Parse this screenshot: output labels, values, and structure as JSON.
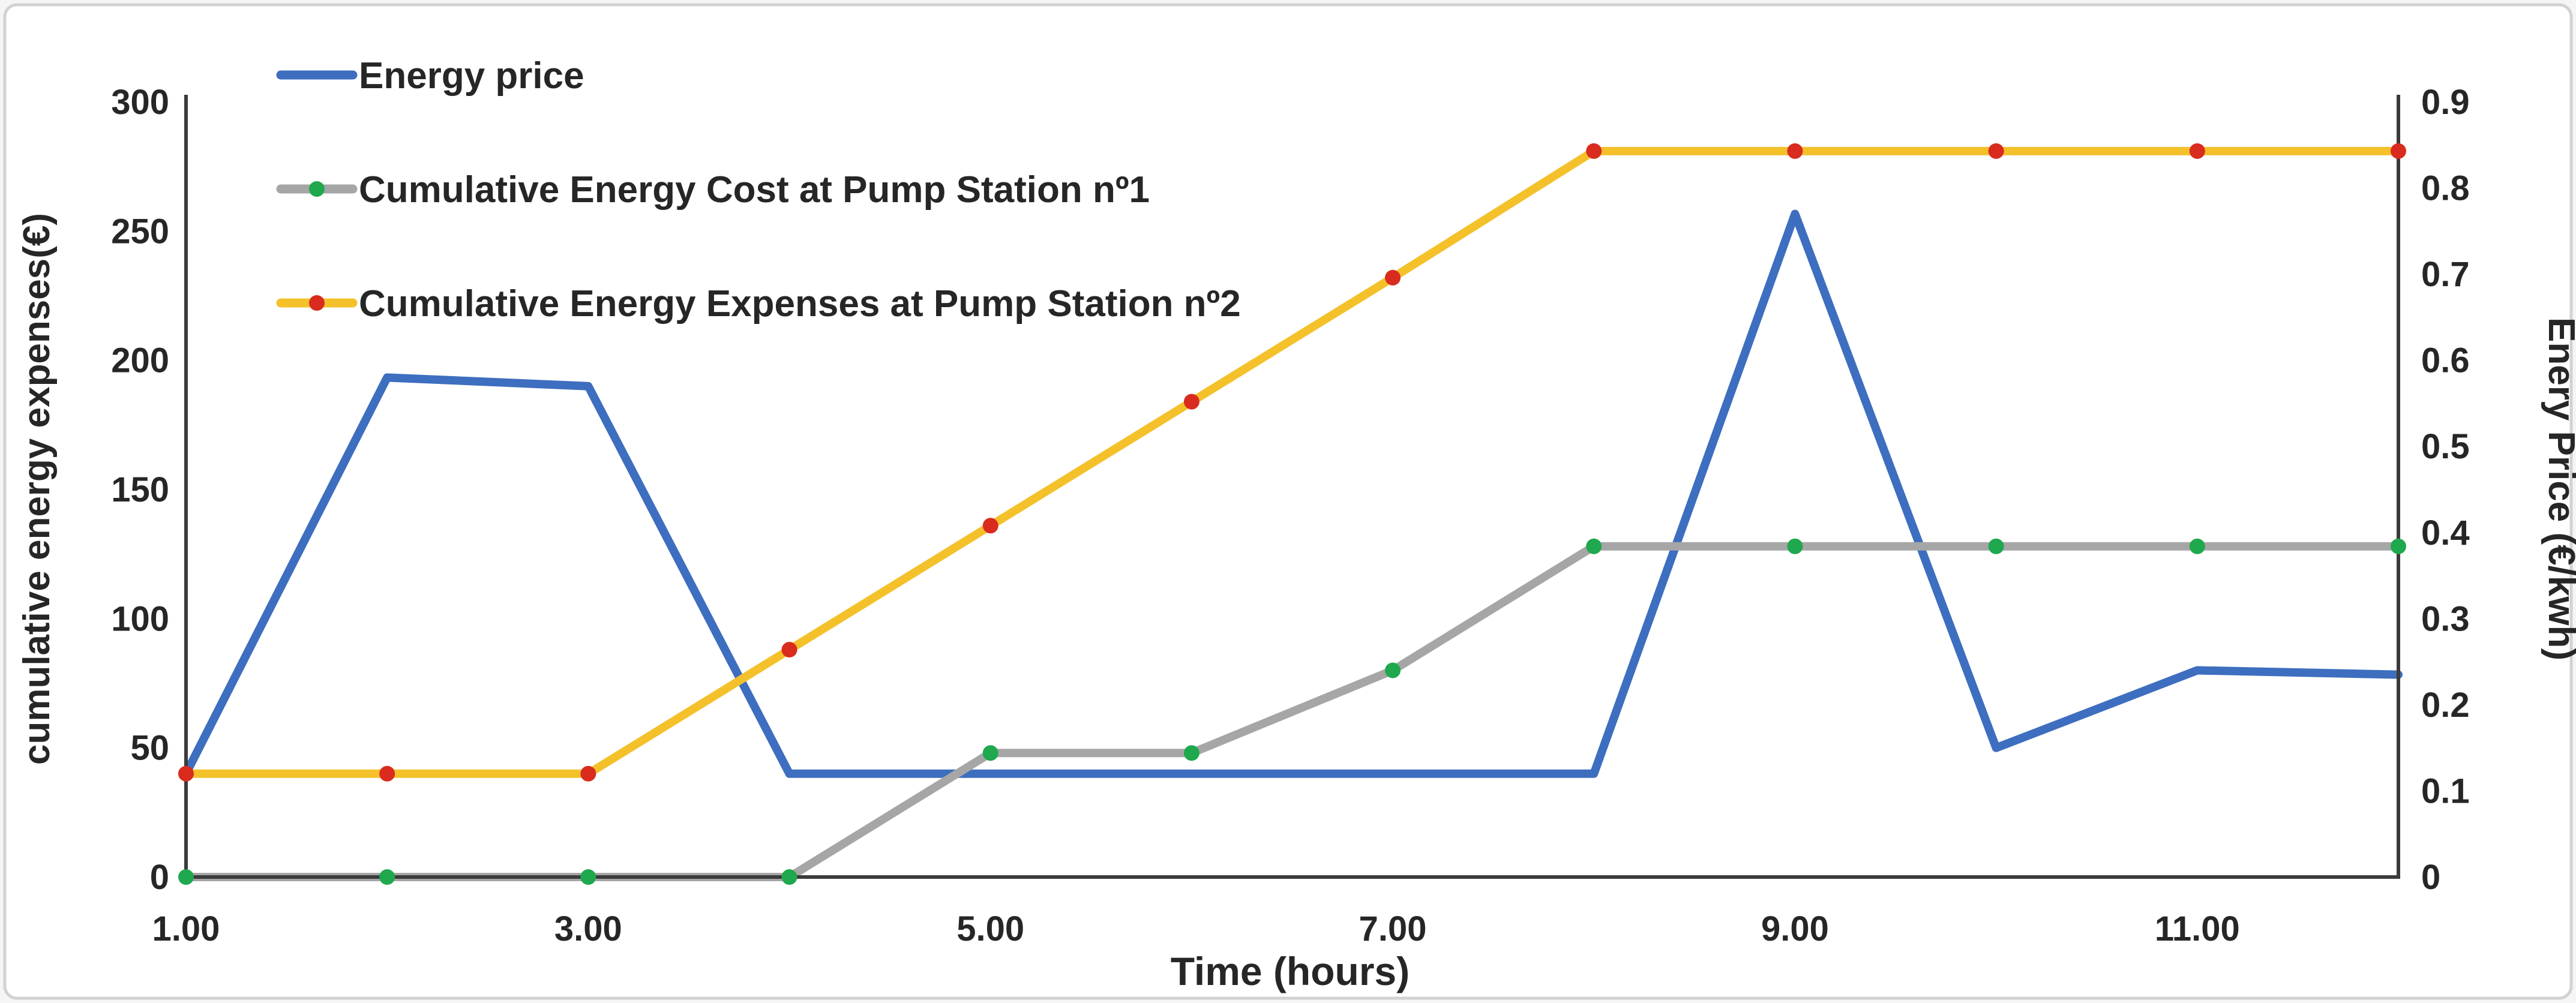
{
  "figure": {
    "outer_background": "#f5f5f5",
    "panel_background": "#ffffff",
    "panel_border_color": "#d2d2d2",
    "axis_line_color": "#3b3b3b",
    "text_color": "#262626"
  },
  "chart_data": {
    "type": "line",
    "title": "",
    "xlabel": "Time (hours)",
    "x": [
      1,
      2,
      3,
      4,
      5,
      6,
      7,
      8,
      9,
      10,
      11,
      12
    ],
    "x_range": [
      1,
      12
    ],
    "x_tick_hours": [
      1,
      3,
      5,
      7,
      9,
      11
    ],
    "x_tick_labels": [
      "1.00",
      "3.00",
      "5.00",
      "7.00",
      "9.00",
      "11.00"
    ],
    "grid": false,
    "legend_position": "top-left",
    "left_axis": {
      "title": "cumulative energy expenses(€)",
      "range": [
        0,
        300
      ],
      "ticks": [
        300,
        250,
        200,
        150,
        100,
        50,
        0
      ],
      "tick_labels": [
        "300",
        "250",
        "200",
        "150",
        "100",
        "50",
        "0"
      ]
    },
    "right_axis": {
      "title": "Enery Price (€/kwh)",
      "range": [
        0,
        0.9
      ],
      "ticks": [
        0.9,
        0.8,
        0.7,
        0.6,
        0.5,
        0.4,
        0.3,
        0.2,
        0.1,
        0
      ],
      "tick_labels": [
        "0.9",
        "0.8",
        "0.7",
        "0.6",
        "0.5",
        "0.4",
        "0.3",
        "0.2",
        "0.1",
        "0"
      ]
    },
    "series": [
      {
        "name": "Energy price",
        "axis": "right",
        "color": "#3d6ebf",
        "marker_color": null,
        "values": [
          0.12,
          0.58,
          0.57,
          0.12,
          0.12,
          0.12,
          0.12,
          0.12,
          0.77,
          0.15,
          0.24,
          0.235
        ]
      },
      {
        "name": "Cumulative Energy Cost at Pump Station nº1",
        "axis": "left",
        "color": "#a6a6a6",
        "marker_color": "#1fa84d",
        "values": [
          0,
          0,
          0,
          0,
          48,
          48,
          80,
          128,
          128,
          128,
          128,
          128
        ]
      },
      {
        "name": "Cumulative Energy Expenses at Pump Station nº2",
        "axis": "left",
        "color": "#f4c12b",
        "marker_color": "#d92b1e",
        "values": [
          40,
          40,
          40,
          88,
          136,
          184,
          232,
          281,
          281,
          281,
          281,
          281
        ]
      }
    ]
  }
}
